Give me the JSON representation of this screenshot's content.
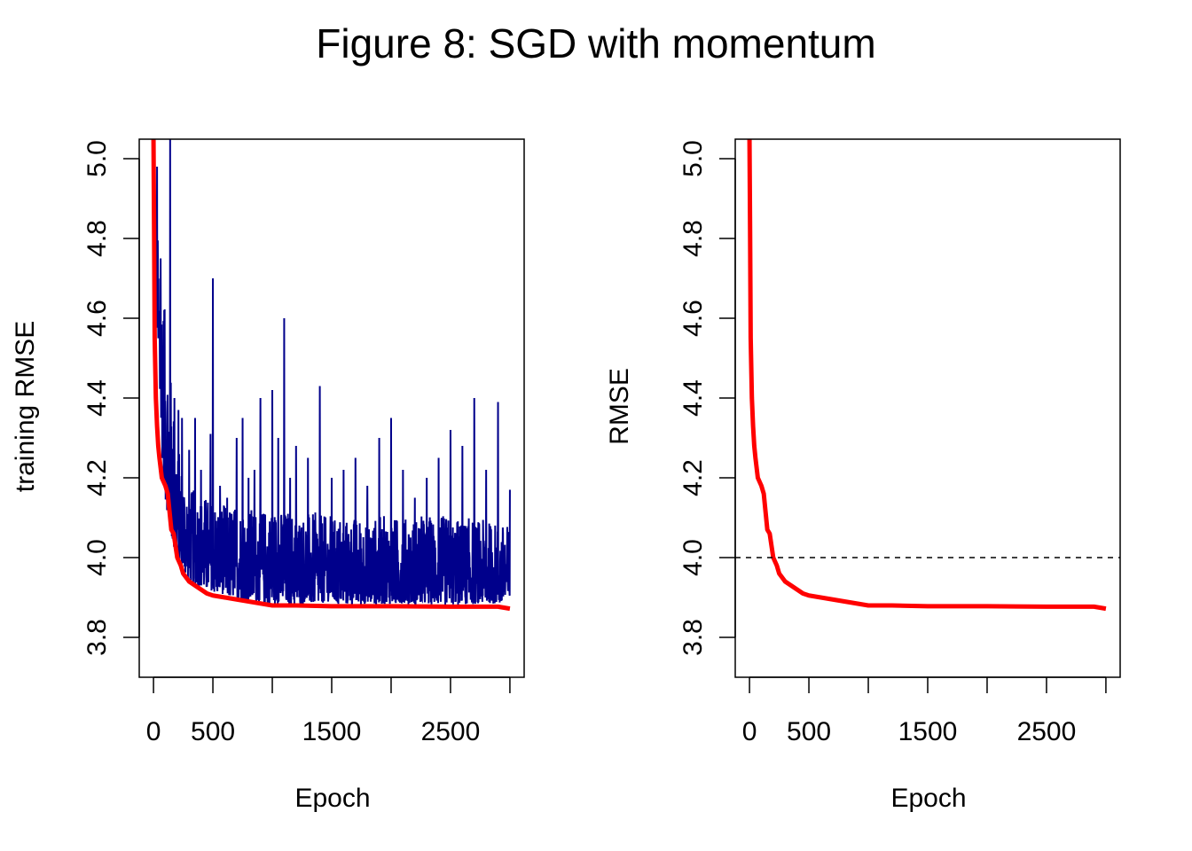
{
  "figure": {
    "title": "Figure 8: SGD with momentum"
  },
  "colors": {
    "noisy_series": "#00008B",
    "smooth_series": "#FF0000",
    "reference_line": "#000000",
    "axis": "#000000"
  },
  "chart_data": [
    {
      "type": "line",
      "title": "",
      "xlabel": "Epoch",
      "ylabel": "training RMSE",
      "xlim": [
        0,
        3000
      ],
      "ylim": [
        3.7,
        5.05
      ],
      "x_ticks": [
        0,
        500,
        1000,
        1500,
        2000,
        2500,
        3000
      ],
      "x_tick_labels": [
        "0",
        "500",
        "",
        "1500",
        "",
        "2500",
        ""
      ],
      "y_ticks": [
        3.8,
        4.0,
        4.2,
        4.4,
        4.6,
        4.8,
        5.0
      ],
      "y_tick_labels": [
        "3.8",
        "4.0",
        "4.2",
        "4.4",
        "4.6",
        "4.8",
        "5.0"
      ],
      "grid": false,
      "legend": "none",
      "series": [
        {
          "style": "noisy",
          "color": "#00008B",
          "floor_x": [
            0,
            50,
            100,
            150,
            200,
            250,
            300,
            400,
            500,
            700,
            1000,
            1500,
            2000,
            2500,
            3000
          ],
          "floor_y": [
            4.95,
            4.35,
            4.15,
            4.05,
            4.0,
            3.97,
            3.95,
            3.93,
            3.92,
            3.9,
            3.89,
            3.89,
            3.89,
            3.89,
            3.89
          ],
          "peaks_x": [
            30,
            60,
            90,
            140,
            175,
            210,
            240,
            300,
            350,
            400,
            480,
            500,
            560,
            620,
            700,
            750,
            800,
            850,
            900,
            1000,
            1050,
            1100,
            1150,
            1200,
            1300,
            1400,
            1500,
            1600,
            1700,
            1800,
            1900,
            2000,
            2100,
            2200,
            2300,
            2400,
            2500,
            2600,
            2700,
            2800,
            2900,
            3000
          ],
          "peaks_y": [
            4.98,
            4.75,
            4.62,
            5.05,
            4.4,
            4.37,
            4.35,
            4.27,
            4.35,
            4.22,
            4.31,
            4.7,
            4.18,
            4.15,
            4.3,
            4.35,
            4.2,
            4.22,
            4.4,
            4.42,
            4.3,
            4.6,
            4.2,
            4.28,
            4.25,
            4.43,
            4.2,
            4.22,
            4.25,
            4.18,
            4.3,
            4.35,
            4.22,
            4.15,
            4.2,
            4.25,
            4.32,
            4.28,
            4.4,
            4.22,
            4.39,
            4.17
          ],
          "band_top_x": [
            0,
            100,
            200,
            300,
            500,
            800,
            1000,
            1500,
            2000,
            2500,
            3000
          ],
          "band_top_y": [
            4.9,
            4.55,
            4.25,
            4.15,
            4.12,
            4.1,
            4.1,
            4.08,
            4.08,
            4.08,
            4.06
          ]
        },
        {
          "style": "smooth",
          "color": "#FF0000",
          "x": [
            0,
            5,
            10,
            20,
            30,
            40,
            50,
            70,
            100,
            120,
            150,
            170,
            200,
            230,
            250,
            300,
            350,
            400,
            450,
            500,
            600,
            700,
            800,
            900,
            1000,
            1200,
            1500,
            2000,
            2500,
            2900,
            3000
          ],
          "y": [
            5.05,
            4.82,
            4.55,
            4.4,
            4.33,
            4.28,
            4.25,
            4.2,
            4.18,
            4.16,
            4.07,
            4.06,
            4.0,
            3.98,
            3.96,
            3.94,
            3.93,
            3.92,
            3.91,
            3.905,
            3.9,
            3.895,
            3.89,
            3.885,
            3.88,
            3.88,
            3.878,
            3.878,
            3.877,
            3.877,
            3.872
          ]
        }
      ]
    },
    {
      "type": "line",
      "title": "",
      "xlabel": "Epoch",
      "ylabel": "RMSE",
      "xlim": [
        0,
        3000
      ],
      "ylim": [
        3.7,
        5.05
      ],
      "x_ticks": [
        0,
        500,
        1000,
        1500,
        2000,
        2500,
        3000
      ],
      "x_tick_labels": [
        "0",
        "500",
        "",
        "1500",
        "",
        "2500",
        ""
      ],
      "y_ticks": [
        3.8,
        4.0,
        4.2,
        4.4,
        4.6,
        4.8,
        5.0
      ],
      "y_tick_labels": [
        "3.8",
        "4.0",
        "4.2",
        "4.4",
        "4.6",
        "4.8",
        "5.0"
      ],
      "grid": false,
      "legend": "none",
      "reference_line": {
        "y": 4.0,
        "style": "dashed",
        "color": "#000000"
      },
      "series": [
        {
          "style": "smooth",
          "color": "#FF0000",
          "x": [
            0,
            5,
            10,
            20,
            30,
            40,
            50,
            70,
            100,
            120,
            150,
            170,
            200,
            230,
            250,
            300,
            350,
            400,
            450,
            500,
            600,
            700,
            800,
            900,
            1000,
            1200,
            1500,
            2000,
            2500,
            2900,
            3000
          ],
          "y": [
            5.05,
            4.82,
            4.55,
            4.4,
            4.33,
            4.28,
            4.25,
            4.2,
            4.18,
            4.16,
            4.07,
            4.06,
            4.0,
            3.98,
            3.96,
            3.94,
            3.93,
            3.92,
            3.91,
            3.905,
            3.9,
            3.895,
            3.89,
            3.885,
            3.88,
            3.88,
            3.878,
            3.878,
            3.877,
            3.877,
            3.872
          ]
        }
      ]
    }
  ]
}
